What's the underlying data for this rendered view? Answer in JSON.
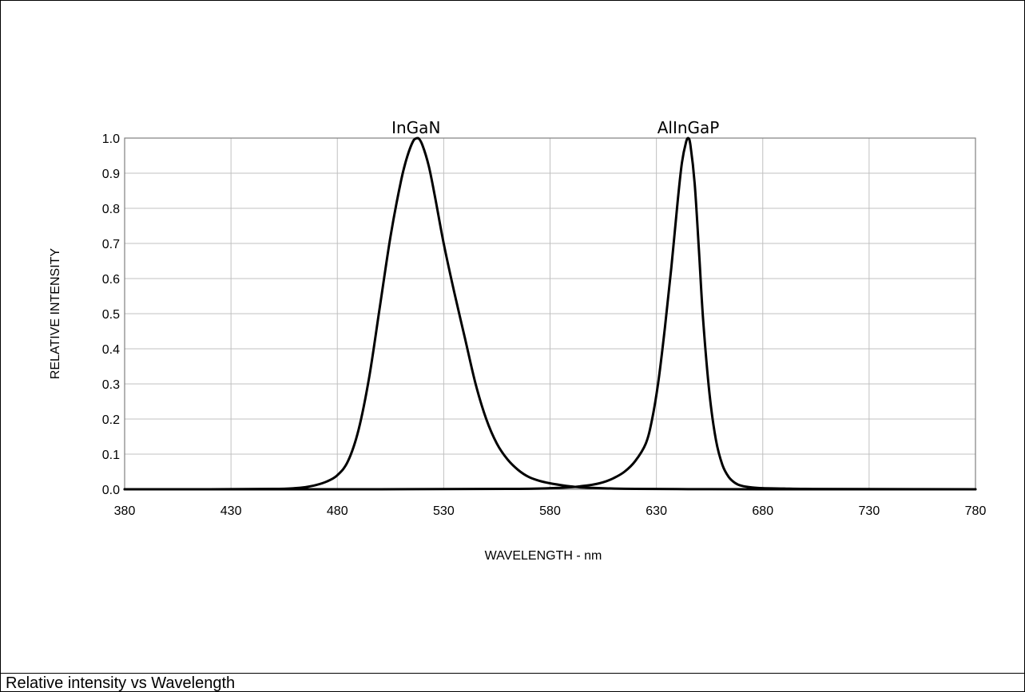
{
  "caption": "Relative intensity vs Wavelength",
  "chart_data": {
    "type": "line",
    "title": "",
    "xlabel": "WAVELENGTH - nm",
    "ylabel": "RELATIVE INTENSITY",
    "xlim": [
      380,
      780
    ],
    "ylim": [
      0.0,
      1.0
    ],
    "xticks": [
      380,
      430,
      480,
      530,
      580,
      630,
      680,
      730,
      780
    ],
    "xtick_labels": [
      "380",
      "430",
      "480",
      "530",
      "580",
      "630",
      "680",
      "730",
      "780"
    ],
    "yticks": [
      0.0,
      0.1,
      0.2,
      0.3,
      0.4,
      0.5,
      0.6,
      0.7,
      0.8,
      0.9,
      1.0
    ],
    "ytick_labels": [
      "0.0",
      "0.1",
      "0.2",
      "0.3",
      "0.4",
      "0.5",
      "0.6",
      "0.7",
      "0.8",
      "0.9",
      "1.0"
    ],
    "grid": true,
    "line_color": "#000000",
    "grid_color": "#c0c0c0",
    "series": [
      {
        "name": "InGaN",
        "label_at": [
          517,
          1.0
        ],
        "x": [
          380,
          420,
          450,
          460,
          465,
          470,
          475,
          480,
          485,
          490,
          495,
          500,
          505,
          510,
          513,
          516,
          518,
          520,
          523,
          526,
          530,
          535,
          540,
          545,
          550,
          555,
          560,
          565,
          570,
          575,
          580,
          585,
          590,
          595,
          600,
          610,
          620,
          640,
          680,
          780
        ],
        "y": [
          0.0,
          0.0,
          0.001,
          0.003,
          0.006,
          0.012,
          0.022,
          0.04,
          0.08,
          0.17,
          0.32,
          0.52,
          0.72,
          0.88,
          0.95,
          0.995,
          1.0,
          0.98,
          0.92,
          0.83,
          0.7,
          0.56,
          0.43,
          0.3,
          0.2,
          0.13,
          0.085,
          0.055,
          0.035,
          0.024,
          0.017,
          0.012,
          0.008,
          0.005,
          0.004,
          0.002,
          0.001,
          0.0005,
          0.0,
          0.0
        ]
      },
      {
        "name": "AlInGaP",
        "label_at": [
          645,
          1.0
        ],
        "x": [
          380,
          500,
          560,
          580,
          590,
          595,
          600,
          605,
          610,
          615,
          620,
          625,
          628,
          631,
          634,
          637,
          640,
          642,
          644,
          645,
          646,
          648,
          650,
          652,
          655,
          658,
          661,
          664,
          667,
          670,
          675,
          680,
          690,
          700,
          730,
          780
        ],
        "y": [
          0.0,
          0.0,
          0.001,
          0.003,
          0.006,
          0.009,
          0.013,
          0.02,
          0.032,
          0.05,
          0.08,
          0.13,
          0.2,
          0.31,
          0.46,
          0.63,
          0.82,
          0.93,
          0.99,
          1.0,
          0.98,
          0.87,
          0.68,
          0.48,
          0.27,
          0.14,
          0.07,
          0.035,
          0.018,
          0.01,
          0.005,
          0.003,
          0.002,
          0.001,
          0.0005,
          0.0
        ]
      }
    ]
  }
}
